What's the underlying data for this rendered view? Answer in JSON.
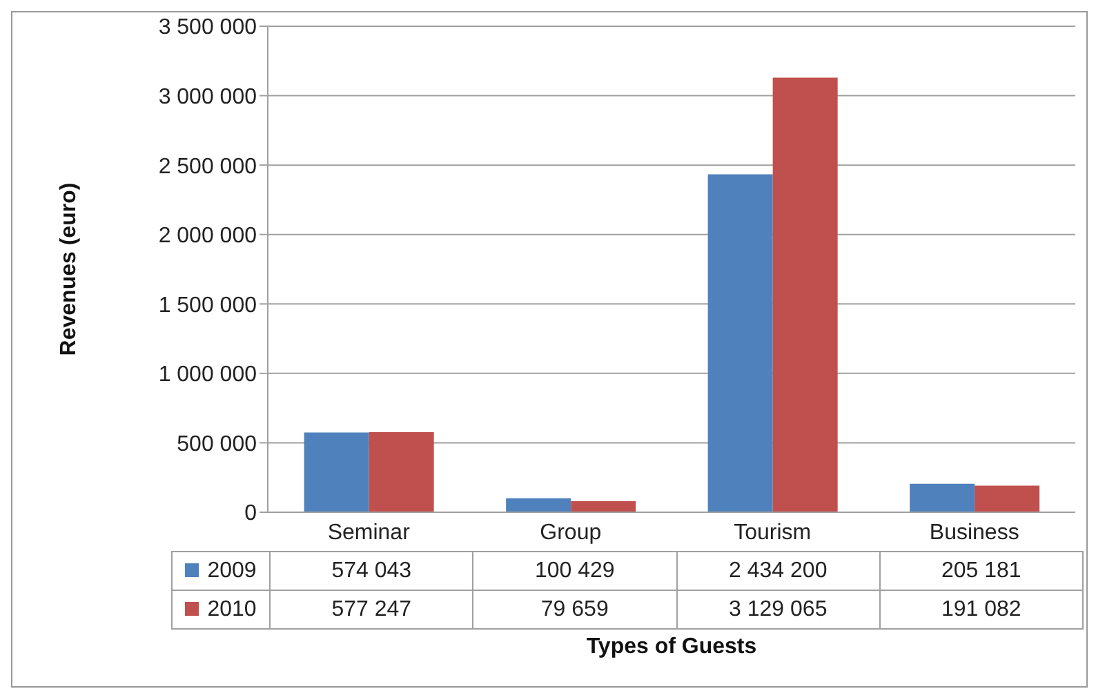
{
  "chart_data": {
    "type": "bar",
    "xlabel": "Types of Guests",
    "ylabel": "Revenues (euro)",
    "categories": [
      "Seminar",
      "Group",
      "Tourism",
      "Business"
    ],
    "series": [
      {
        "name": "2009",
        "color": "#4f81bd",
        "values": [
          574043,
          100429,
          2434200,
          205181
        ],
        "value_labels": [
          "574 043",
          "100 429",
          "2 434 200",
          "205 181"
        ]
      },
      {
        "name": "2010",
        "color": "#c0504d",
        "values": [
          577247,
          79659,
          3129065,
          191082
        ],
        "value_labels": [
          "577 247",
          "79 659",
          "3 129 065",
          "191 082"
        ]
      }
    ],
    "ylim": [
      0,
      3500000
    ],
    "yticks": [
      0,
      {
        "value": 500000,
        "label": "500 000"
      },
      {
        "value": 1000000,
        "label": "1 000 000"
      },
      {
        "value": 1500000,
        "label": "1 500 000"
      },
      {
        "value": 2000000,
        "label": "2 000 000"
      },
      {
        "value": 2500000,
        "label": "2 500 000"
      },
      {
        "value": 3000000,
        "label": "3 000 000"
      },
      {
        "value": 3500000,
        "label": "3 500 000"
      }
    ],
    "grid": "y",
    "legend": "bottom"
  }
}
